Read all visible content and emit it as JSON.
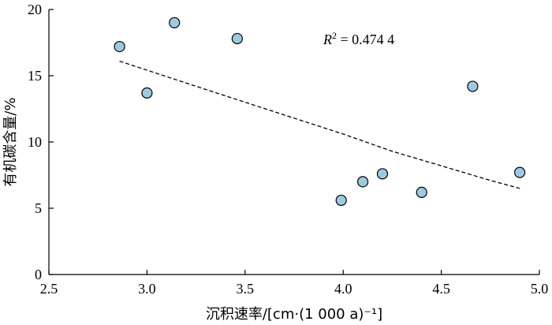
{
  "chart_data": {
    "type": "scatter",
    "xlabel": "沉积速率/[cm·(1 000 a)⁻¹]",
    "ylabel": "有机碳含量/%",
    "xlim": [
      2.5,
      5.0
    ],
    "ylim": [
      0,
      20
    ],
    "xticks": [
      "2.5",
      "3.0",
      "3.5",
      "4.0",
      "4.5",
      "5.0"
    ],
    "yticks": [
      "0",
      "5",
      "10",
      "15",
      "20"
    ],
    "grid": false,
    "points": [
      {
        "x": 2.86,
        "y": 17.2
      },
      {
        "x": 3.0,
        "y": 13.7
      },
      {
        "x": 3.14,
        "y": 19.0
      },
      {
        "x": 3.46,
        "y": 17.8
      },
      {
        "x": 3.99,
        "y": 5.6
      },
      {
        "x": 4.1,
        "y": 7.0
      },
      {
        "x": 4.2,
        "y": 7.6
      },
      {
        "x": 4.4,
        "y": 6.2
      },
      {
        "x": 4.66,
        "y": 14.2
      },
      {
        "x": 4.9,
        "y": 7.7
      }
    ],
    "point_color": "#9ecae1",
    "trendline": {
      "style": "dashed",
      "points": [
        {
          "x": 2.86,
          "y": 16.1
        },
        {
          "x": 3.25,
          "y": 14.2
        },
        {
          "x": 3.5,
          "y": 13.0
        },
        {
          "x": 3.75,
          "y": 11.8
        },
        {
          "x": 4.0,
          "y": 10.6
        },
        {
          "x": 4.25,
          "y": 9.3
        },
        {
          "x": 4.5,
          "y": 8.2
        },
        {
          "x": 4.75,
          "y": 7.1
        },
        {
          "x": 4.9,
          "y": 6.5
        }
      ]
    },
    "annotation": {
      "r_symbol": "R",
      "r_exponent": "2",
      "value_text": " = 0.474 4"
    }
  }
}
